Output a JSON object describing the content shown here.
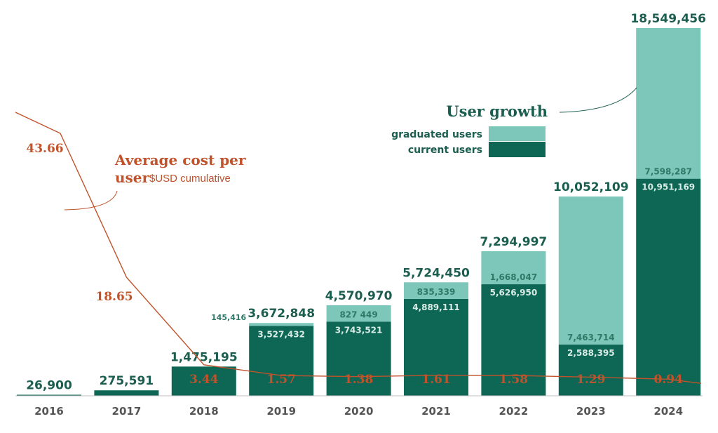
{
  "chart_data": {
    "type": "bar",
    "stacked": true,
    "categories": [
      "2016",
      "2017",
      "2018",
      "2019",
      "2020",
      "2021",
      "2022",
      "2023",
      "2024"
    ],
    "series": [
      {
        "name": "current users",
        "values": [
          26900,
          275591,
          1475195,
          3527432,
          3743521,
          4889111,
          5626950,
          2588395,
          10951169
        ],
        "labels": [
          "",
          "",
          "",
          "3,527,432",
          "3,743,521",
          "4,889,111",
          "5,626,950",
          "2,588,395",
          "10,951,169"
        ],
        "color": "#0e6655"
      },
      {
        "name": "graduated users",
        "values": [
          0,
          0,
          0,
          145416,
          827449,
          835339,
          1668047,
          7463714,
          7598287
        ],
        "labels": [
          "",
          "",
          "",
          "145,416",
          "827 449",
          "835,339",
          "1,668,047",
          "7,463,714",
          "7,598,287"
        ],
        "color": "#7cc6ba"
      }
    ],
    "totals": [
      26900,
      275591,
      1475195,
      3672848,
      4570970,
      5724450,
      7294997,
      10052109,
      18549456
    ],
    "total_labels": [
      "26,900",
      "275,591",
      "1,475,195",
      "3,672,848",
      "4,570,970",
      "5,724,450",
      "7,294,997",
      "10,052,109",
      "18,549,456"
    ],
    "ylim": [
      0,
      18549456
    ],
    "line_series": {
      "name": "Average cost per user",
      "x": [
        "2016",
        "2017",
        "2018",
        "2019",
        "2020",
        "2021",
        "2022",
        "2023",
        "2024"
      ],
      "values": [
        43.66,
        18.65,
        3.44,
        1.57,
        1.38,
        1.61,
        1.58,
        1.29,
        0.94
      ],
      "labels": [
        "43.66",
        "18.65",
        "3.44",
        "1.57",
        "1.38",
        "1.61",
        "1.58",
        "1.29",
        "0.94"
      ],
      "color": "#c0532b"
    },
    "annotations": {
      "cost_title_line1": "Average cost per",
      "cost_title_line2": "user",
      "cost_subtitle": "$USD cumulative",
      "user_growth_title": "User growth"
    },
    "legend": {
      "position": "top-right",
      "items": [
        {
          "label": "graduated users",
          "color": "#7cc6ba"
        },
        {
          "label": "current users",
          "color": "#0e6655"
        }
      ]
    },
    "grid": false
  }
}
